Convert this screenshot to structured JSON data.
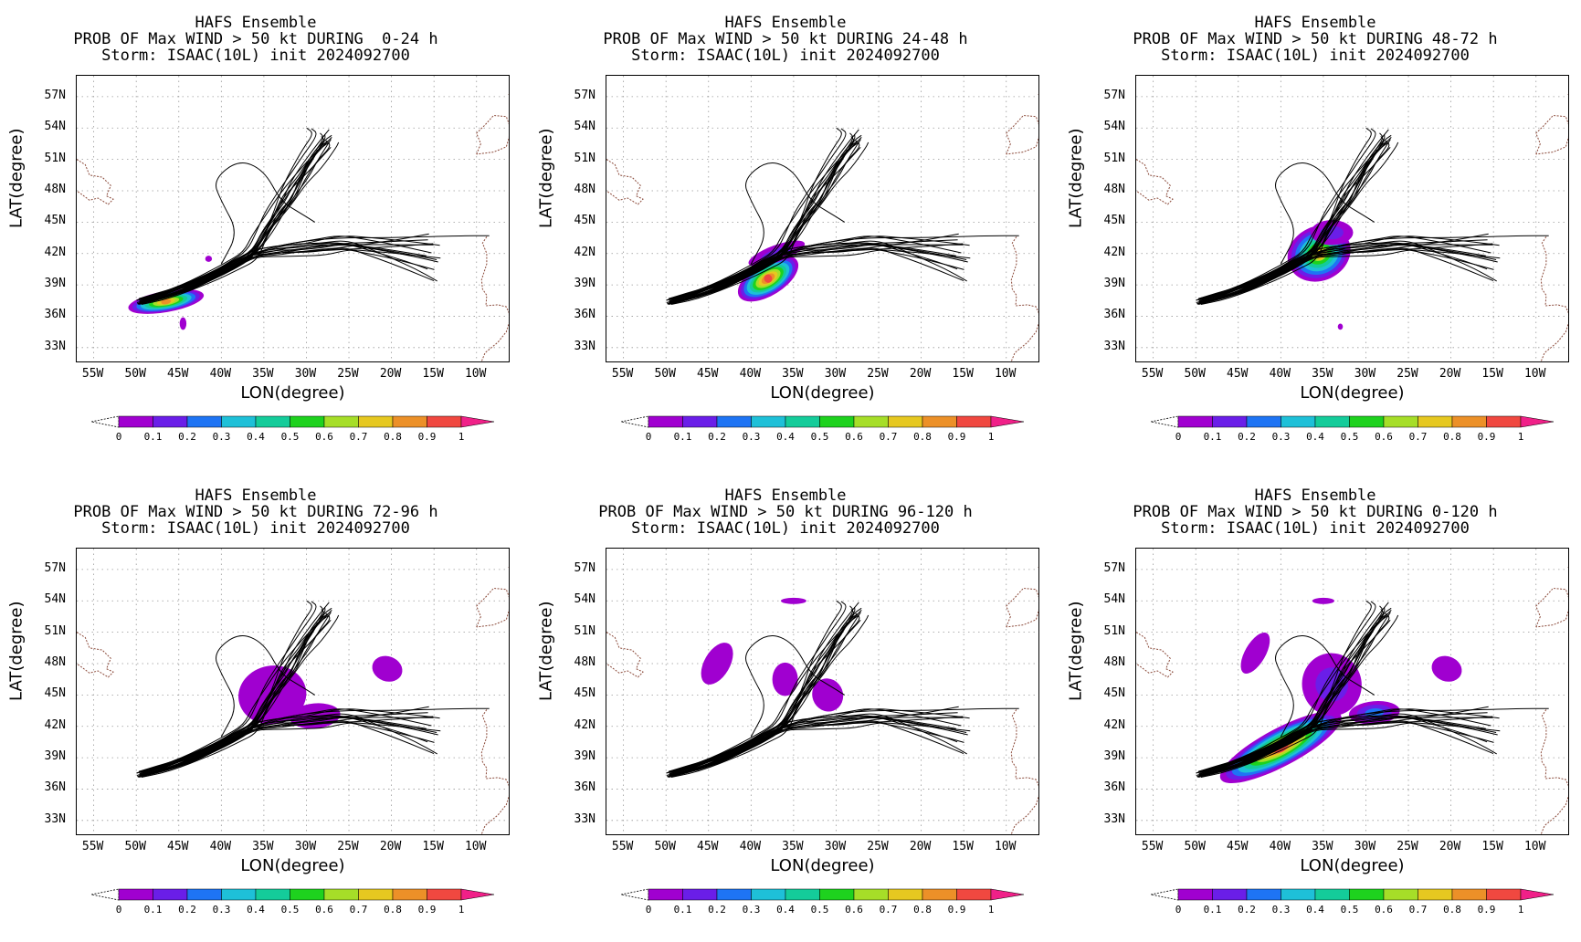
{
  "panels": [
    {
      "title": "HAFS Ensemble",
      "subtitle": "PROB OF Max WIND > 50 kt DURING  0-24 h",
      "storm": "Storm: ISAAC(10L) init 2024092700"
    },
    {
      "title": "HAFS Ensemble",
      "subtitle": "PROB OF Max WIND > 50 kt DURING 24-48 h",
      "storm": "Storm: ISAAC(10L) init 2024092700"
    },
    {
      "title": "HAFS Ensemble",
      "subtitle": "PROB OF Max WIND > 50 kt DURING 48-72 h",
      "storm": "Storm: ISAAC(10L) init 2024092700"
    },
    {
      "title": "HAFS Ensemble",
      "subtitle": "PROB OF Max WIND > 50 kt DURING 72-96 h",
      "storm": "Storm: ISAAC(10L) init 2024092700"
    },
    {
      "title": "HAFS Ensemble",
      "subtitle": "PROB OF Max WIND > 50 kt DURING 96-120 h",
      "storm": "Storm: ISAAC(10L) init 2024092700"
    },
    {
      "title": "HAFS Ensemble",
      "subtitle": "PROB OF Max WIND > 50 kt DURING 0-120 h",
      "storm": "Storm: ISAAC(10L) init 2024092700"
    }
  ],
  "axes": {
    "xlabel": "LON(degree)",
    "ylabel": "LAT(degree)",
    "lat_ticks": [
      "57N",
      "54N",
      "51N",
      "48N",
      "45N",
      "42N",
      "39N",
      "36N",
      "33N"
    ],
    "lon_ticks": [
      "55W",
      "50W",
      "45W",
      "40W",
      "35W",
      "30W",
      "25W",
      "20W",
      "15W",
      "10W"
    ],
    "lon_range": [
      -57,
      -6
    ],
    "lat_range": [
      31.5,
      59
    ]
  },
  "colorbar": {
    "labels": [
      "0",
      "0.1",
      "0.2",
      "0.3",
      "0.4",
      "0.5",
      "0.6",
      "0.7",
      "0.8",
      "0.9",
      "1"
    ],
    "colors": [
      "#a000d0",
      "#6a1ee8",
      "#1e74f4",
      "#1ec0d8",
      "#14cc9a",
      "#1ed21e",
      "#a6de28",
      "#e6c820",
      "#ec9028",
      "#f04840",
      "#f02088"
    ]
  }
}
